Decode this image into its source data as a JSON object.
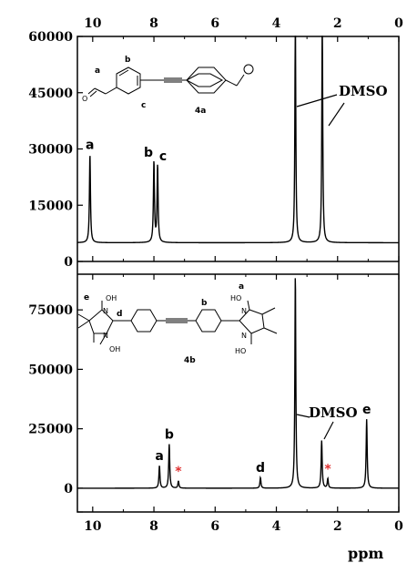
{
  "chart_data": [
    {
      "type": "line",
      "panel": "top",
      "compound": "4a",
      "xlabel": "ppm",
      "x_reversed": true,
      "xlim": [
        10.5,
        0
      ],
      "ylim": [
        0,
        60000
      ],
      "x_ticks": [
        "10",
        "8",
        "6",
        "4",
        "2",
        "0"
      ],
      "y_ticks": [
        "0",
        "15000",
        "30000",
        "45000",
        "60000"
      ],
      "baseline": 5000,
      "peaks": [
        {
          "ppm": 10.09,
          "height": 23500,
          "label": "a"
        },
        {
          "ppm": 8.0,
          "height": 21500,
          "label": "b"
        },
        {
          "ppm": 7.88,
          "height": 20500,
          "label": "c"
        },
        {
          "ppm": 3.38,
          "height": 60000,
          "label": ""
        },
        {
          "ppm": 2.5,
          "height": 60000,
          "label": ""
        }
      ],
      "annotation": "DMSO",
      "structure_labels": {
        "a": "a",
        "b": "b",
        "c": "c",
        "id": "4a"
      }
    },
    {
      "type": "line",
      "panel": "bottom",
      "compound": "4b",
      "xlabel": "ppm",
      "x_reversed": true,
      "xlim": [
        10.5,
        0
      ],
      "ylim": [
        -10000,
        90000
      ],
      "x_ticks": [
        "10",
        "8",
        "6",
        "4",
        "2",
        "0"
      ],
      "y_ticks": [
        "0",
        "25000",
        "50000",
        "75000"
      ],
      "baseline": 0,
      "peaks": [
        {
          "ppm": 7.82,
          "height": 9500,
          "label": "a"
        },
        {
          "ppm": 7.5,
          "height": 18500,
          "label": "b"
        },
        {
          "ppm": 7.2,
          "height": 3000,
          "label": "*"
        },
        {
          "ppm": 4.52,
          "height": 4500,
          "label": "d"
        },
        {
          "ppm": 3.38,
          "height": 90000,
          "label": ""
        },
        {
          "ppm": 2.52,
          "height": 20000,
          "label": ""
        },
        {
          "ppm": 2.32,
          "height": 4000,
          "label": "*"
        },
        {
          "ppm": 1.05,
          "height": 29000,
          "label": "e"
        }
      ],
      "annotation": "DMSO",
      "structure_labels": {
        "a": "a",
        "b": "b",
        "d": "d",
        "e": "e",
        "id": "4b",
        "oh": "OH",
        "ho": "HO",
        "n": "N"
      }
    }
  ],
  "colors": {
    "line": "#000000",
    "impurity": "#e03030",
    "background": "#ffffff"
  }
}
